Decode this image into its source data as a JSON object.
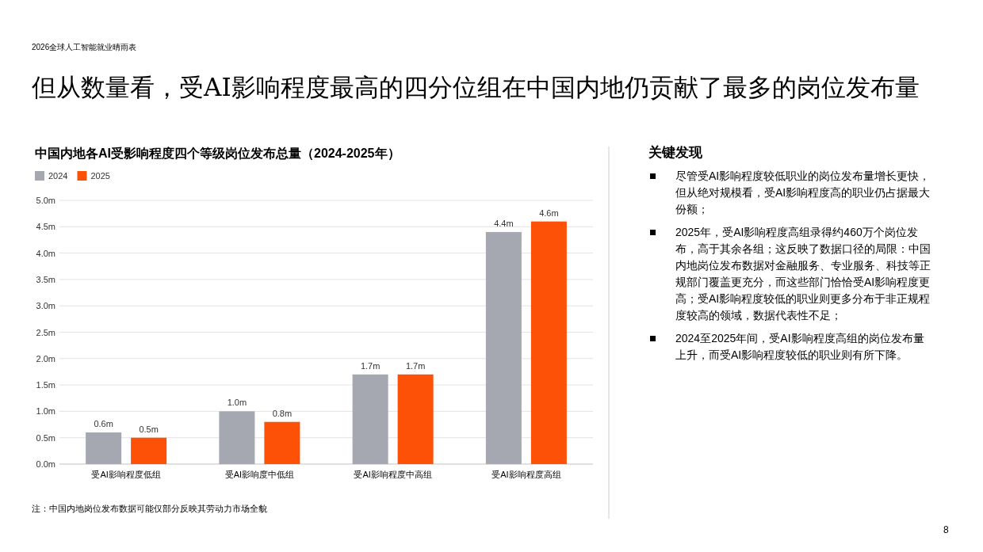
{
  "chart_data": [
    {
      "type": "bar",
      "title": "中国内地各AI受影响程度四个等级岗位发布总量（2024-2025年）",
      "annotations": [
        "2026全球人工智能就业晴雨表",
        "但从数量看，受AI影响程度最高的四分位组在中国内地仍贡献了最多的岗位发布量",
        "注：中国内地岗位发布数据可能仅部分反映其劳动力市场全貌",
        "8"
      ],
      "categories": [
        "受AI影响程度低组",
        "受AI影响度中低组",
        "受AI影响程度中高组",
        "受AI影响程度高组"
      ],
      "series": [
        {
          "name": "2024",
          "color": "#a5a8b0",
          "values": [
            0.6,
            1.0,
            1.7,
            4.4
          ],
          "value_labels": [
            "0.6m",
            "1.0m",
            "1.7m",
            "4.4m"
          ]
        },
        {
          "name": "2025",
          "color": "#fd5108",
          "values": [
            0.5,
            0.8,
            1.7,
            4.6
          ],
          "value_labels": [
            "0.5m",
            "0.8m",
            "1.7m",
            "4.6m"
          ]
        }
      ],
      "ylim": [
        0,
        5
      ],
      "yticks": [
        {
          "value": 0,
          "label": "0.0m"
        },
        {
          "value": 0.5,
          "label": "0.5m"
        },
        {
          "value": 1,
          "label": "1.0m"
        },
        {
          "value": 1.5,
          "label": "1.5m"
        },
        {
          "value": 2,
          "label": "2.0m"
        },
        {
          "value": 2.5,
          "label": "2.5m"
        },
        {
          "value": 3,
          "label": "3.0m"
        },
        {
          "value": 3.5,
          "label": "3.5m"
        },
        {
          "value": 4,
          "label": "4.0m"
        },
        {
          "value": 4.5,
          "label": "4.5m"
        },
        {
          "value": 5,
          "label": "5.0m"
        }
      ],
      "grid": "y",
      "legend": "top left"
    },
    {
      "type": "other",
      "title": "关键发现",
      "annotations": [
        "尽管受AI影响程度较低职业的岗位发布量增长更快，但从绝对规模看，受AI影响程度高的职业仍占据最大份额；",
        "2025年，受AI影响程度高组录得约460万个岗位发布，高于其余各组；这反映了数据口径的局限：中国内地岗位发布数据对金融服务、专业服务、科技等正规部门覆盖更充分，而这些部门恰恰受AI影响程度更高；受AI影响程度较低的职业则更多分布于非正规程度较高的领域，数据代表性不足；",
        "2024至2025年间，受AI影响程度高组的岗位发布量上升，而受AI影响程度较低的职业则有所下降。"
      ]
    }
  ]
}
